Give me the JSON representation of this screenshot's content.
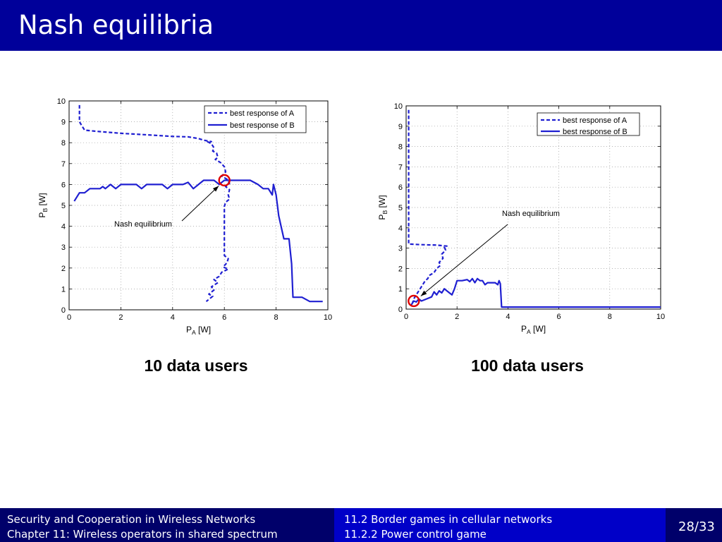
{
  "slide": {
    "title": "Nash equilibria"
  },
  "captions": [
    "10 data users",
    "100 data users"
  ],
  "footer": {
    "left_line1": "Security and Cooperation in Wireless Networks",
    "left_line2": "Chapter 11: Wireless operators in shared spectrum",
    "mid_line1": "11.2 Border games in cellular networks",
    "mid_line2": "11.2.2 Power control game",
    "page": "28/33"
  },
  "colors": {
    "header": "#00009a",
    "series": "#1f1fd1",
    "marker": "#e00000"
  },
  "chart_data": [
    {
      "type": "line",
      "xlabel": "P_A [W]",
      "ylabel": "P_B [W]",
      "xlim": [
        0,
        10
      ],
      "ylim": [
        0,
        10
      ],
      "xticks": [
        0,
        2,
        4,
        6,
        8,
        10
      ],
      "yticks": [
        0,
        1,
        2,
        3,
        4,
        5,
        6,
        7,
        8,
        9,
        10
      ],
      "grid": true,
      "legend_position": "top-right",
      "series": [
        {
          "name": "best response of A",
          "style": "dashed",
          "points": [
            [
              0.4,
              9.8
            ],
            [
              0.4,
              9.0
            ],
            [
              0.5,
              8.8
            ],
            [
              0.6,
              8.6
            ],
            [
              1.0,
              8.55
            ],
            [
              2.0,
              8.45
            ],
            [
              3.0,
              8.38
            ],
            [
              4.0,
              8.3
            ],
            [
              4.6,
              8.28
            ],
            [
              5.0,
              8.2
            ],
            [
              5.2,
              8.12
            ],
            [
              5.5,
              8.05
            ],
            [
              5.35,
              8.05
            ],
            [
              5.5,
              7.95
            ],
            [
              5.6,
              7.75
            ],
            [
              5.55,
              7.6
            ],
            [
              5.7,
              7.5
            ],
            [
              5.75,
              7.3
            ],
            [
              5.65,
              7.2
            ],
            [
              5.85,
              7.05
            ],
            [
              6.0,
              6.85
            ],
            [
              6.05,
              6.6
            ],
            [
              5.9,
              6.4
            ],
            [
              6.1,
              6.25
            ],
            [
              6.2,
              6.05
            ],
            [
              6.05,
              5.9
            ],
            [
              6.2,
              5.75
            ],
            [
              6.15,
              5.5
            ],
            [
              6.2,
              5.3
            ],
            [
              6.05,
              5.15
            ],
            [
              6.0,
              4.95
            ],
            [
              6.0,
              4.5
            ],
            [
              6.0,
              4.0
            ],
            [
              6.0,
              3.5
            ],
            [
              6.0,
              3.0
            ],
            [
              6.0,
              2.6
            ],
            [
              6.15,
              2.45
            ],
            [
              6.1,
              2.25
            ],
            [
              5.95,
              2.05
            ],
            [
              6.15,
              1.95
            ],
            [
              5.9,
              1.8
            ],
            [
              5.8,
              1.6
            ],
            [
              5.6,
              1.45
            ],
            [
              5.75,
              1.3
            ],
            [
              5.5,
              1.1
            ],
            [
              5.6,
              0.95
            ],
            [
              5.4,
              0.75
            ],
            [
              5.55,
              0.65
            ],
            [
              5.3,
              0.4
            ]
          ]
        },
        {
          "name": "best response of B",
          "style": "solid",
          "points": [
            [
              0.2,
              5.2
            ],
            [
              0.4,
              5.6
            ],
            [
              0.6,
              5.6
            ],
            [
              0.8,
              5.8
            ],
            [
              1.2,
              5.8
            ],
            [
              1.3,
              5.9
            ],
            [
              1.4,
              5.8
            ],
            [
              1.5,
              5.9
            ],
            [
              1.6,
              6.0
            ],
            [
              1.7,
              5.9
            ],
            [
              1.8,
              5.8
            ],
            [
              2.0,
              6.0
            ],
            [
              2.6,
              6.0
            ],
            [
              2.8,
              5.8
            ],
            [
              2.9,
              5.9
            ],
            [
              3.0,
              6.0
            ],
            [
              3.6,
              6.0
            ],
            [
              3.8,
              5.8
            ],
            [
              3.9,
              5.9
            ],
            [
              4.0,
              6.0
            ],
            [
              4.4,
              6.0
            ],
            [
              4.6,
              6.1
            ],
            [
              4.8,
              5.8
            ],
            [
              5.0,
              6.0
            ],
            [
              5.2,
              6.2
            ],
            [
              5.6,
              6.2
            ],
            [
              5.7,
              6.1
            ],
            [
              5.8,
              6.0
            ],
            [
              5.9,
              6.1
            ],
            [
              6.0,
              6.2
            ],
            [
              7.0,
              6.2
            ],
            [
              7.3,
              6.0
            ],
            [
              7.5,
              5.8
            ],
            [
              7.7,
              5.8
            ],
            [
              7.85,
              5.5
            ],
            [
              7.9,
              6.0
            ],
            [
              8.0,
              5.5
            ],
            [
              8.1,
              4.5
            ],
            [
              8.3,
              3.4
            ],
            [
              8.5,
              3.4
            ],
            [
              8.6,
              2.2
            ],
            [
              8.65,
              0.6
            ],
            [
              9.0,
              0.6
            ],
            [
              9.3,
              0.4
            ],
            [
              9.8,
              0.4
            ]
          ]
        }
      ],
      "annotation": {
        "text": "Nash equilibrium",
        "point": [
          6.0,
          6.2
        ]
      }
    },
    {
      "type": "line",
      "xlabel": "P_A [W]",
      "ylabel": "P_B [W]",
      "xlim": [
        0,
        10
      ],
      "ylim": [
        0,
        10
      ],
      "xticks": [
        0,
        2,
        4,
        6,
        8,
        10
      ],
      "yticks": [
        0,
        1,
        2,
        3,
        4,
        5,
        6,
        7,
        8,
        9,
        10
      ],
      "grid": true,
      "legend_position": "top-right",
      "series": [
        {
          "name": "best response of A",
          "style": "dashed",
          "points": [
            [
              0.1,
              9.8
            ],
            [
              0.1,
              8.0
            ],
            [
              0.1,
              6.0
            ],
            [
              0.1,
              4.0
            ],
            [
              0.1,
              3.2
            ],
            [
              0.6,
              3.17
            ],
            [
              1.2,
              3.15
            ],
            [
              1.6,
              3.1
            ],
            [
              1.5,
              3.05
            ],
            [
              1.55,
              2.9
            ],
            [
              1.4,
              2.7
            ],
            [
              1.45,
              2.5
            ],
            [
              1.3,
              2.3
            ],
            [
              1.35,
              2.15
            ],
            [
              1.2,
              2.0
            ],
            [
              1.1,
              1.8
            ],
            [
              0.9,
              1.65
            ],
            [
              0.85,
              1.5
            ],
            [
              0.75,
              1.4
            ],
            [
              0.7,
              1.3
            ],
            [
              0.6,
              1.1
            ],
            [
              0.5,
              0.9
            ],
            [
              0.4,
              0.7
            ],
            [
              0.3,
              0.5
            ],
            [
              0.25,
              0.3
            ]
          ]
        },
        {
          "name": "best response of B",
          "style": "solid",
          "points": [
            [
              0.2,
              0.2
            ],
            [
              0.3,
              0.4
            ],
            [
              0.4,
              0.35
            ],
            [
              0.5,
              0.5
            ],
            [
              0.6,
              0.4
            ],
            [
              0.8,
              0.5
            ],
            [
              1.0,
              0.6
            ],
            [
              1.1,
              0.85
            ],
            [
              1.2,
              0.7
            ],
            [
              1.3,
              0.9
            ],
            [
              1.4,
              0.8
            ],
            [
              1.5,
              1.0
            ],
            [
              1.6,
              0.9
            ],
            [
              1.7,
              0.8
            ],
            [
              1.8,
              0.7
            ],
            [
              1.9,
              1.0
            ],
            [
              2.0,
              1.4
            ],
            [
              2.2,
              1.4
            ],
            [
              2.4,
              1.45
            ],
            [
              2.5,
              1.35
            ],
            [
              2.6,
              1.5
            ],
            [
              2.7,
              1.3
            ],
            [
              2.8,
              1.5
            ],
            [
              2.9,
              1.4
            ],
            [
              3.0,
              1.4
            ],
            [
              3.1,
              1.2
            ],
            [
              3.2,
              1.3
            ],
            [
              3.5,
              1.3
            ],
            [
              3.6,
              1.2
            ],
            [
              3.65,
              1.4
            ],
            [
              3.7,
              1.25
            ],
            [
              3.75,
              0.1
            ],
            [
              6.0,
              0.1
            ],
            [
              10.0,
              0.1
            ]
          ]
        }
      ],
      "annotation": {
        "text": "Nash equilibrium",
        "point": [
          0.3,
          0.4
        ]
      }
    }
  ]
}
